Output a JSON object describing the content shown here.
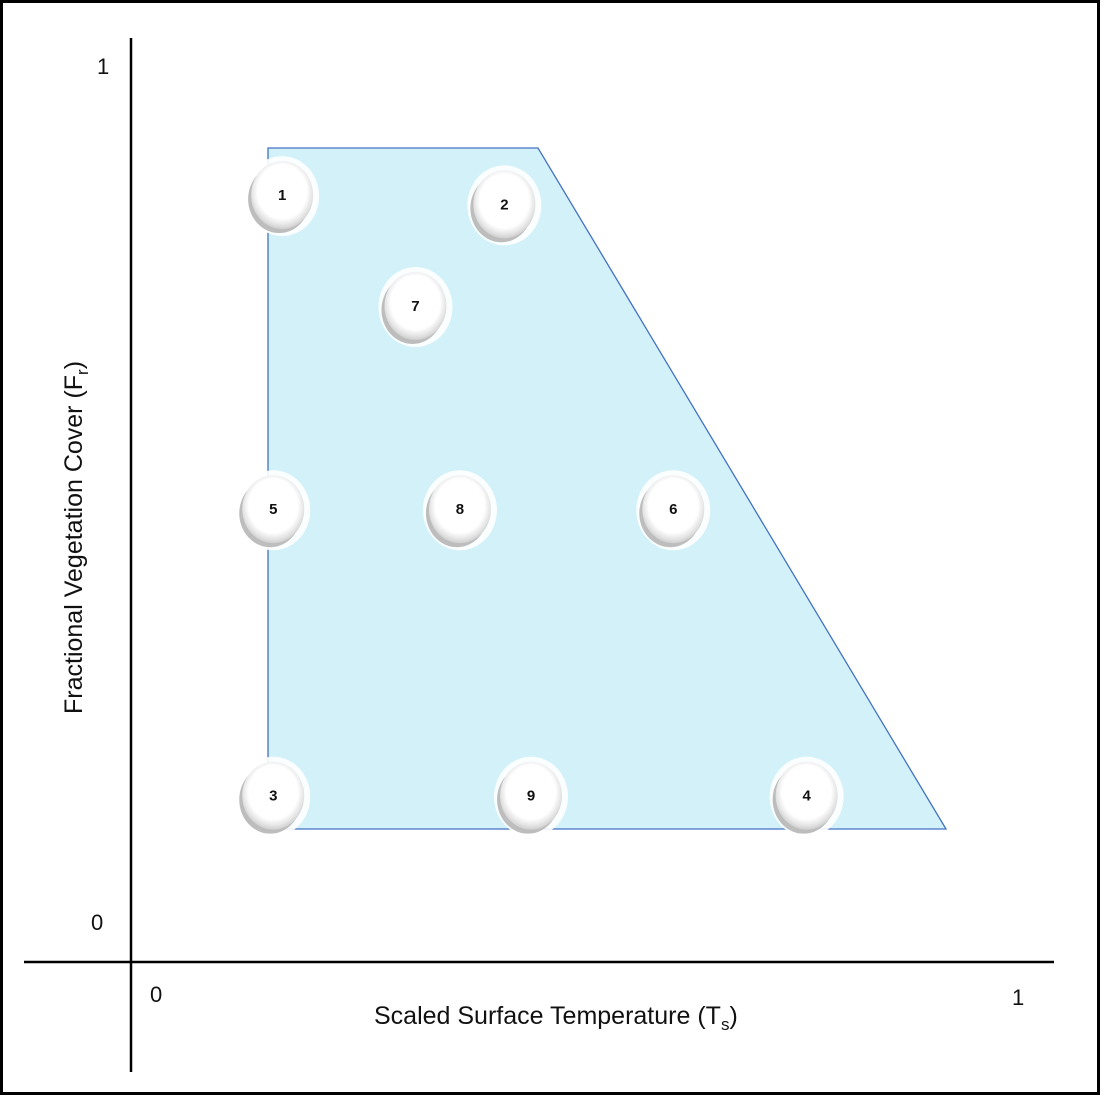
{
  "axes": {
    "x_label": "Scaled Surface Temperature (T",
    "x_sub": "s",
    "x_close": ")",
    "y_label": "Fractional Vegetation Cover (F",
    "y_sub": "r",
    "y_close": ")",
    "x_tick_min": "0",
    "x_tick_max": "1",
    "y_tick_min": "0",
    "y_tick_max": "1"
  },
  "region": {
    "fill": "#d2f1f9",
    "stroke": "#4472c4"
  },
  "points": [
    {
      "label": "1",
      "ts": 0.17,
      "fr": 0.83
    },
    {
      "label": "2",
      "ts": 0.42,
      "fr": 0.82
    },
    {
      "label": "7",
      "ts": 0.32,
      "fr": 0.71
    },
    {
      "label": "5",
      "ts": 0.16,
      "fr": 0.49
    },
    {
      "label": "8",
      "ts": 0.37,
      "fr": 0.49
    },
    {
      "label": "6",
      "ts": 0.61,
      "fr": 0.49
    },
    {
      "label": "3",
      "ts": 0.16,
      "fr": 0.18
    },
    {
      "label": "9",
      "ts": 0.45,
      "fr": 0.18
    },
    {
      "label": "4",
      "ts": 0.76,
      "fr": 0.18
    }
  ]
}
